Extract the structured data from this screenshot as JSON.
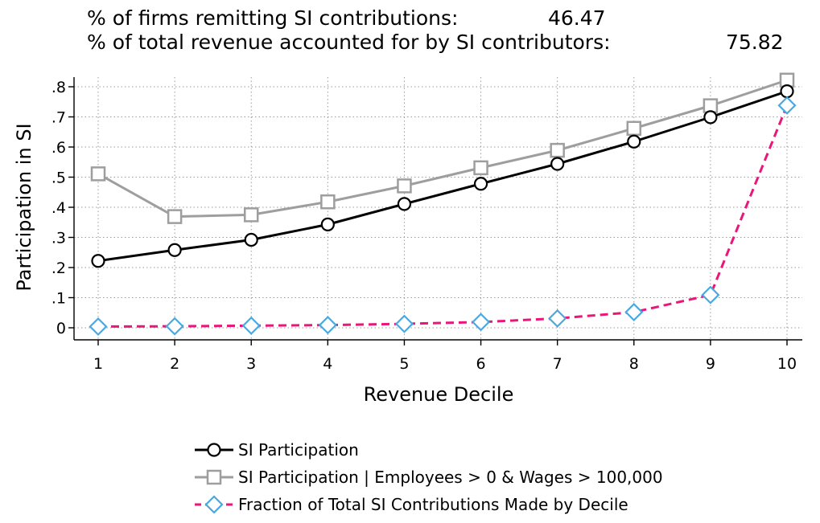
{
  "header": {
    "row1": {
      "label": "% of firms remitting SI contributions:",
      "value": "46.47"
    },
    "row2": {
      "label": "% of total revenue accounted for by SI contributors:",
      "value": "75.82"
    }
  },
  "chart_data": {
    "type": "line",
    "title": "",
    "xlabel": "Revenue Decile",
    "ylabel": "Participation in SI",
    "x": [
      1,
      2,
      3,
      4,
      5,
      6,
      7,
      8,
      9,
      10
    ],
    "x_tick_labels": [
      "1",
      "2",
      "3",
      "4",
      "5",
      "6",
      "7",
      "8",
      "9",
      "10"
    ],
    "xlim": [
      1,
      10
    ],
    "ylim": [
      0,
      0.8
    ],
    "y_ticks": [
      0,
      0.1,
      0.2,
      0.3,
      0.4,
      0.5,
      0.6,
      0.7,
      0.8
    ],
    "y_tick_labels": [
      "0",
      ".1",
      ".2",
      ".3",
      ".4",
      ".5",
      ".6",
      ".7",
      ".8"
    ],
    "grid": true,
    "legend_position": "bottom",
    "series": [
      {
        "name": "SI Participation",
        "values": [
          0.222,
          0.258,
          0.292,
          0.343,
          0.411,
          0.478,
          0.544,
          0.618,
          0.699,
          0.785
        ],
        "color": "#000000",
        "marker": "circle",
        "dash": "solid"
      },
      {
        "name": "SI Participation | Employees > 0 & Wages > 100,000",
        "values": [
          0.511,
          0.369,
          0.375,
          0.418,
          0.471,
          0.531,
          0.589,
          0.662,
          0.737,
          0.822
        ],
        "color": "#9e9e9e",
        "marker": "square",
        "dash": "solid"
      },
      {
        "name": "Fraction of Total SI Contributions Made by Decile",
        "values": [
          0.004,
          0.005,
          0.007,
          0.009,
          0.013,
          0.019,
          0.031,
          0.052,
          0.109,
          0.738
        ],
        "color": "#e8177a",
        "marker_color": "#4aa8e0",
        "marker": "diamond",
        "dash": "dashed"
      }
    ]
  }
}
